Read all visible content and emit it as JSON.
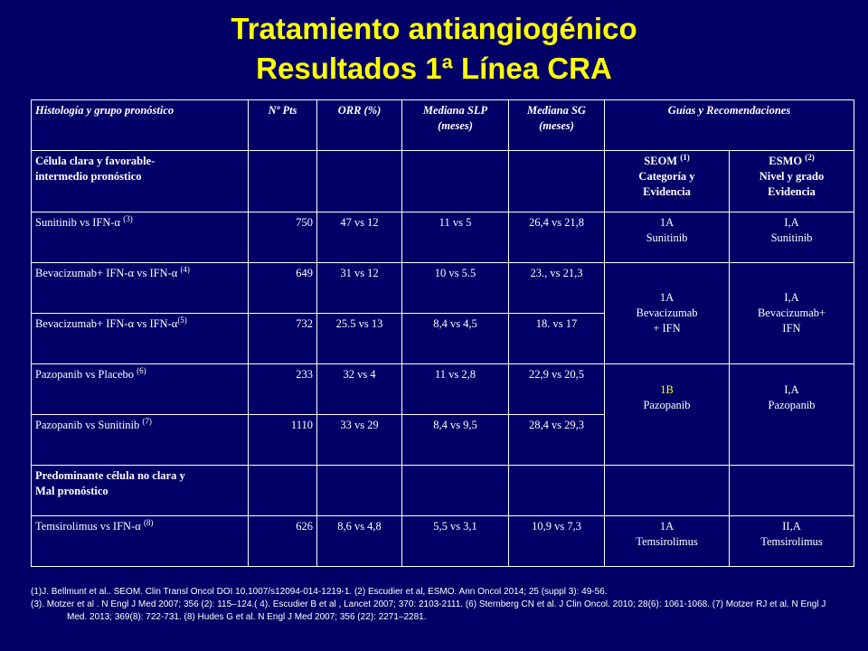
{
  "title": {
    "line1": "Tratamiento antiangiogénico",
    "line2": "Resultados 1ª Línea CRA"
  },
  "colors": {
    "background": "#000066",
    "accent": "#ffff00",
    "text": "#ffffff"
  },
  "table": {
    "headers": {
      "histologia": "Histología y grupo pronóstico",
      "n_pts": "Nº Pts",
      "orr": "ORR (%)",
      "slp_1": "Mediana SLP",
      "slp_2": "(meses)",
      "sg_1": "Mediana SG",
      "sg_2": "(meses)",
      "guias": "Guías y Recomendaciones"
    },
    "group1": {
      "label_1": "Célula clara y favorable-",
      "label_2": "intermedio pronóstico",
      "seom_1": "SEOM",
      "seom_sup": "(1)",
      "seom_2": "Categoría y",
      "seom_3": "Evidencia",
      "esmo_1": "ESMO",
      "esmo_sup": "(2)",
      "esmo_2": "Nivel y grado",
      "esmo_3": "Evidencia"
    },
    "rows": {
      "sunitinib": {
        "name": "Sunitinib vs IFN-",
        "alpha": "α",
        "sup": "(3)",
        "pts": "750",
        "orr": "47 vs 12",
        "slp": "11 vs 5",
        "sg": "26,4 vs 21,8",
        "seom_1": "1A",
        "seom_2": "Sunitinib",
        "esmo_1": "I,A",
        "esmo_2": "Sunitinib"
      },
      "beva1": {
        "name_a": "Bevacizumab+ IFN-",
        "alpha": "α",
        "name_b": " vs IFN-",
        "sup": "(4)",
        "pts": "649",
        "orr": "31 vs 12",
        "slp": "10 vs 5.5",
        "sg": "23., vs 21,3"
      },
      "beva2": {
        "name_a": "Bevacizumab+ IFN-",
        "alpha": "α",
        "name_b": " vs IFN-",
        "sup": "(5)",
        "pts": "732",
        "orr": "25.5 vs 13",
        "slp": "8,4 vs 4,5",
        "sg": "18. vs 17"
      },
      "beva_guides": {
        "seom_1": "1A",
        "seom_2": "Bevacizumab",
        "seom_3": "+ IFN",
        "esmo_1": "I,A",
        "esmo_2": "Bevacizumab+",
        "esmo_3": "IFN"
      },
      "pazo1": {
        "name": "Pazopanib vs Placebo ",
        "sup": "(6)",
        "pts": "233",
        "orr": "32 vs 4",
        "slp": "11 vs 2,8",
        "sg": "22,9 vs 20,5"
      },
      "pazo2": {
        "name": "Pazopanib vs Sunitinib ",
        "sup": "(7)",
        "pts": "1110",
        "orr": "33 vs 29",
        "slp": "8,4 vs 9,5",
        "sg": "28,4 vs 29,3"
      },
      "pazo_guides": {
        "seom_1": "1B",
        "seom_2": "Pazopanib",
        "esmo_1": "I,A",
        "esmo_2": "Pazopanib"
      }
    },
    "group2": {
      "label_1": "Predominante célula no clara y",
      "label_2": "Mal pronóstico"
    },
    "temsi": {
      "name": "Temsirolimus vs IFN-",
      "alpha": "α",
      "sup": "(8)",
      "pts": "626",
      "orr": "8,6 vs 4,8",
      "slp": "5,5 vs 3,1",
      "sg": "10,9 vs 7,3",
      "seom_1": "1A",
      "seom_2": "Temsirolimus",
      "esmo_1": "II,A",
      "esmo_2": "Temsirolimus"
    }
  },
  "references": {
    "line1": "(1)J. Bellmunt et al.. SEOM. Clin Transl Oncol DOI 10.1007/s12094-014-1219-1. (2) Escudier et al, ESMO. Ann Oncol 2014; 25 (suppl 3): 49-56.",
    "line2": "(3). Motzer et al . N Engl J Med 2007; 356 (2): 115–124.( 4). Escudier B et al , Lancet 2007; 370: 2103-2111. (6) Sternberg CN et al. J Clin Oncol. 2010; 28(6): 1061-1068. (7) Motzer RJ et al. N Engl J Med. 2013; 369(8): 722-731. (8) Hudes G et al. N Engl J Med 2007; 356 (22): 2271–2281."
  }
}
